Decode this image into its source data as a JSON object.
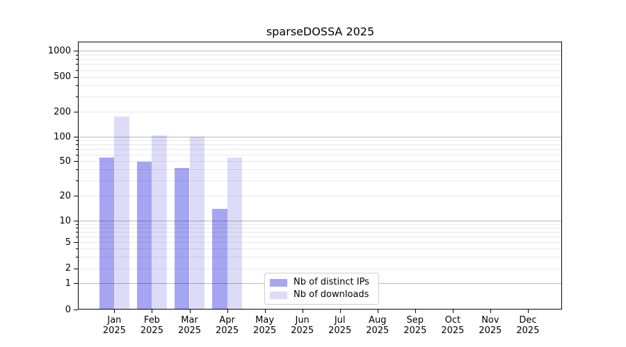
{
  "title": "sparseDOSSA 2025",
  "chart_data": {
    "type": "bar",
    "title": "sparseDOSSA 2025",
    "yscale": "symlog",
    "grid": "horizontal (major and minor)",
    "legend_position": "lower center-left inside plot",
    "categories": [
      "Jan",
      "Feb",
      "Mar",
      "Apr",
      "May",
      "Jun",
      "Jul",
      "Aug",
      "Sep",
      "Oct",
      "Nov",
      "Dec"
    ],
    "category_year": "2025",
    "y_tick_labels": [
      "0",
      "1",
      "2",
      "5",
      "10",
      "20",
      "50",
      "100",
      "200",
      "500",
      "1000"
    ],
    "y_ticks": [
      0,
      1,
      2,
      5,
      10,
      20,
      50,
      100,
      200,
      500,
      1000
    ],
    "y_major_grid": [
      1,
      10,
      100,
      1000
    ],
    "y_minor_grid": [
      2,
      3,
      4,
      5,
      6,
      7,
      8,
      9,
      20,
      30,
      40,
      50,
      60,
      70,
      80,
      90,
      200,
      300,
      400,
      500,
      600,
      700,
      800,
      900
    ],
    "ylim": [
      0,
      1250
    ],
    "series": [
      {
        "name": "Nb of distinct IPs",
        "color": "#a5a5f2",
        "values": [
          55,
          49,
          42,
          14,
          0,
          0,
          0,
          0,
          0,
          0,
          0,
          0
        ]
      },
      {
        "name": "Nb of downloads",
        "color": "#dcdcf9",
        "values": [
          175,
          104,
          100,
          55,
          0,
          0,
          0,
          0,
          0,
          0,
          0,
          0
        ]
      }
    ]
  }
}
